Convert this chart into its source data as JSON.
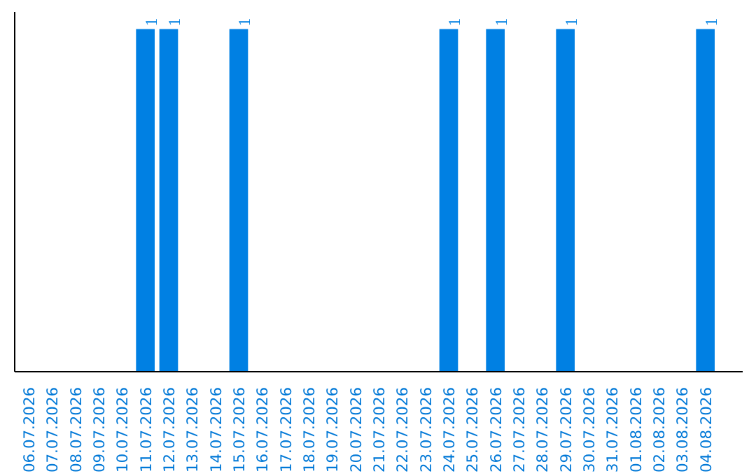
{
  "chart_data": {
    "type": "bar",
    "categories": [
      "06.07.2026",
      "07.07.2026",
      "08.07.2026",
      "09.07.2026",
      "10.07.2026",
      "11.07.2026",
      "12.07.2026",
      "13.07.2026",
      "14.07.2026",
      "15.07.2026",
      "16.07.2026",
      "17.07.2026",
      "18.07.2026",
      "19.07.2026",
      "20.07.2026",
      "21.07.2026",
      "22.07.2026",
      "23.07.2026",
      "24.07.2026",
      "25.07.2026",
      "26.07.2026",
      "27.07.2026",
      "28.07.2026",
      "29.07.2026",
      "30.07.2026",
      "31.07.2026",
      "01.08.2026",
      "02.08.2026",
      "03.08.2026",
      "04.08.2026"
    ],
    "values": [
      0,
      0,
      0,
      0,
      0,
      1,
      1,
      0,
      0,
      1,
      0,
      0,
      0,
      0,
      0,
      0,
      0,
      0,
      1,
      0,
      1,
      0,
      0,
      1,
      0,
      0,
      0,
      0,
      0,
      1
    ],
    "value_labels": [
      null,
      null,
      null,
      null,
      null,
      "1",
      "1",
      null,
      null,
      "1",
      null,
      null,
      null,
      null,
      null,
      null,
      null,
      null,
      "1",
      null,
      "1",
      null,
      null,
      "1",
      null,
      null,
      null,
      null,
      null,
      "1"
    ],
    "color": "#0080e3",
    "tick_labels": "x",
    "grid": false
  }
}
